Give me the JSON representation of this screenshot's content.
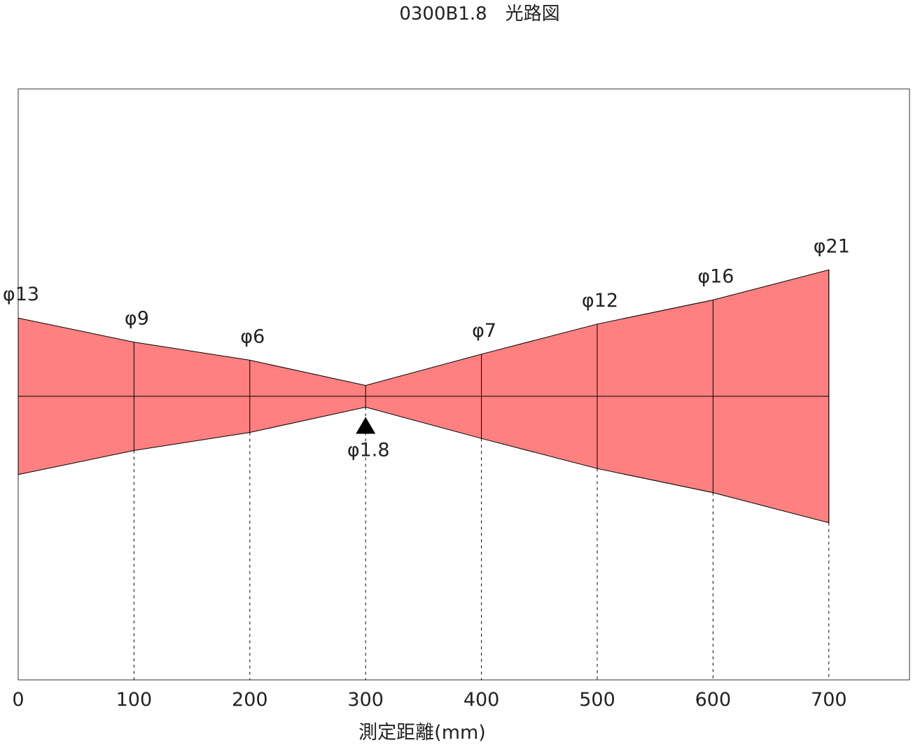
{
  "title": "0300B1.8　光路図",
  "xlabel": "測定距離(mm)",
  "colors": {
    "beam": "#ff8080",
    "line": "#000000",
    "frame": "#333333"
  },
  "x_ticks": [
    0,
    100,
    200,
    300,
    400,
    500,
    600,
    700
  ],
  "focus": {
    "distance": 300,
    "label": "φ1.8",
    "marker": "triangle-up-marker"
  },
  "beam_diameters": [
    {
      "distance": 0,
      "label": "φ13",
      "diameter": 13
    },
    {
      "distance": 100,
      "label": "φ9",
      "diameter": 9
    },
    {
      "distance": 200,
      "label": "φ6",
      "diameter": 6
    },
    {
      "distance": 300,
      "label": "φ1.8",
      "diameter": 1.8
    },
    {
      "distance": 400,
      "label": "φ7",
      "diameter": 7
    },
    {
      "distance": 500,
      "label": "φ12",
      "diameter": 12
    },
    {
      "distance": 600,
      "label": "φ16",
      "diameter": 16
    },
    {
      "distance": 700,
      "label": "φ21",
      "diameter": 21
    }
  ]
}
